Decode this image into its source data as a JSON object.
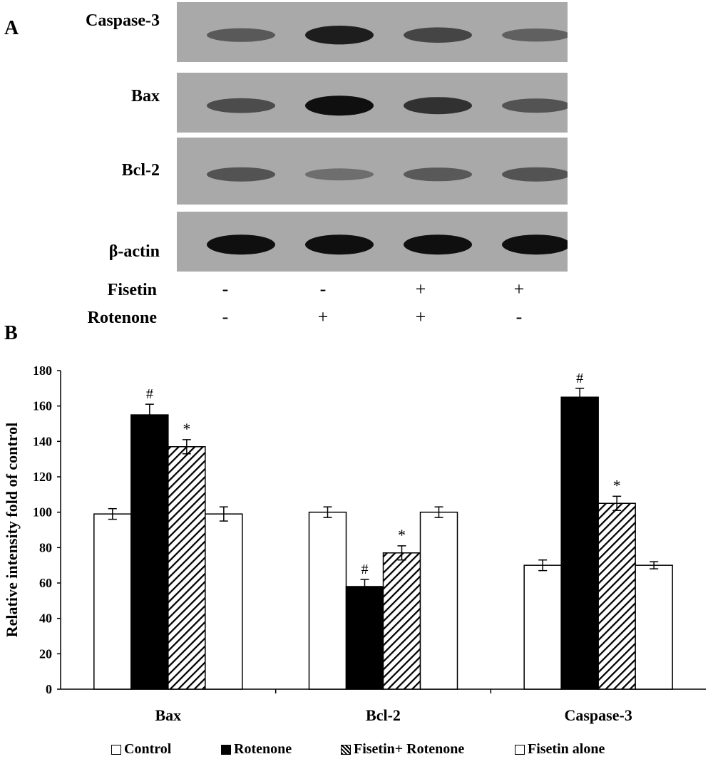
{
  "panels": {
    "a": "A",
    "b": "B"
  },
  "blot": {
    "proteins": [
      {
        "label": "Caspase-3",
        "intensity": [
          0.45,
          0.9,
          0.6,
          0.4
        ]
      },
      {
        "label": "Bax",
        "intensity": [
          0.55,
          1.0,
          0.75,
          0.5
        ]
      },
      {
        "label": "Bcl-2",
        "intensity": [
          0.5,
          0.3,
          0.45,
          0.5
        ]
      },
      {
        "label": "β-actin",
        "intensity": [
          1.0,
          1.0,
          1.0,
          1.0
        ]
      }
    ],
    "treatments": [
      {
        "label": "Fisetin",
        "signs": [
          "-",
          "-",
          "+",
          "+"
        ]
      },
      {
        "label": "Rotenone",
        "signs": [
          "-",
          "+",
          "+",
          "-"
        ]
      }
    ]
  },
  "chart_data": {
    "type": "bar",
    "categories": [
      "Bax",
      "Bcl-2",
      "Caspase-3"
    ],
    "ylabel": "Relative intensity fold of control",
    "ylim": [
      0,
      180
    ],
    "yticks": [
      0,
      20,
      40,
      60,
      80,
      100,
      120,
      140,
      160,
      180
    ],
    "series": [
      {
        "name": "Control",
        "fill": "white",
        "values": [
          99,
          100,
          70
        ],
        "errors": [
          3,
          3,
          3
        ],
        "marks": [
          "",
          "",
          ""
        ]
      },
      {
        "name": "Rotenone",
        "fill": "black",
        "values": [
          155,
          58,
          165
        ],
        "errors": [
          6,
          4,
          5
        ],
        "marks": [
          "#",
          "#",
          "#"
        ]
      },
      {
        "name": "Fisetin+ Rotenone",
        "fill": "hatch",
        "values": [
          137,
          77,
          105
        ],
        "errors": [
          4,
          4,
          4
        ],
        "marks": [
          "*",
          "*",
          "*"
        ]
      },
      {
        "name": "Fisetin alone",
        "fill": "white",
        "values": [
          99,
          100,
          70
        ],
        "errors": [
          4,
          3,
          2
        ],
        "marks": [
          "",
          "",
          ""
        ]
      }
    ],
    "legend_position": "bottom"
  }
}
